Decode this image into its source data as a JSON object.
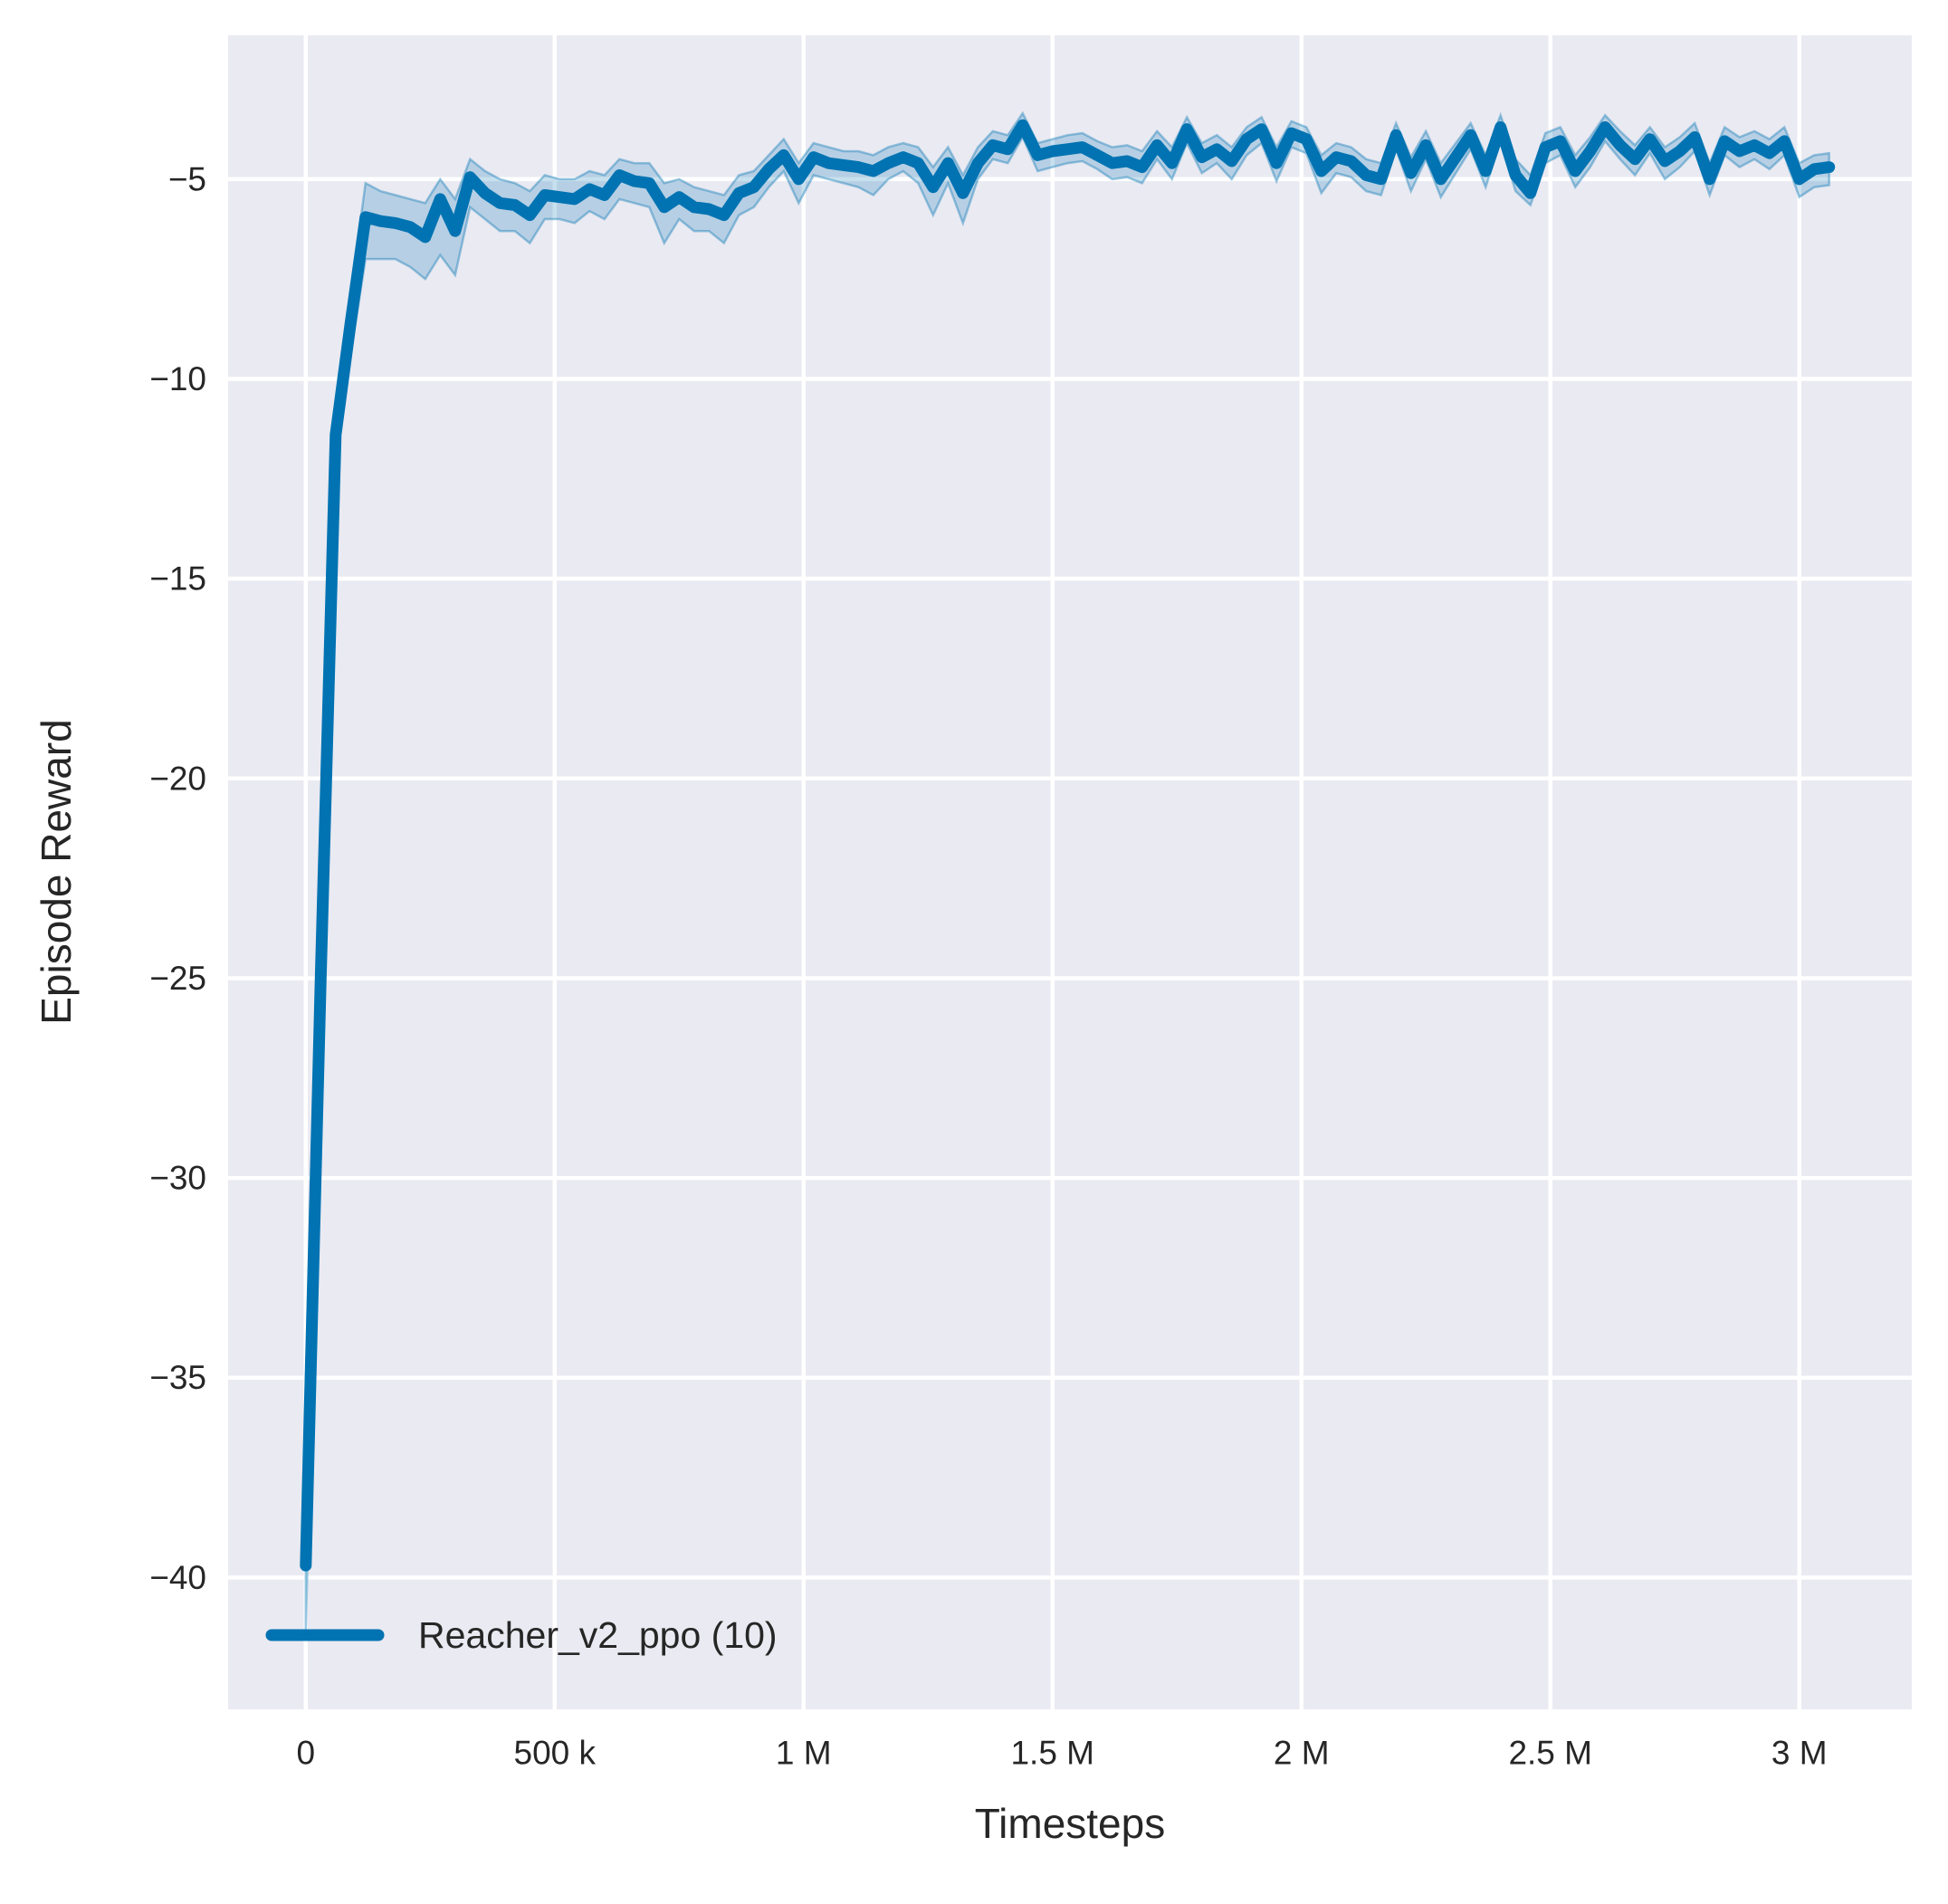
{
  "figure": {
    "background": "#ffffff",
    "panel_background": "#eaeaf2",
    "grid_color": "#ffffff",
    "text_color": "#262626"
  },
  "chart_data": {
    "type": "line",
    "title": "",
    "xlabel": "Timesteps",
    "ylabel": "Episode Reward",
    "grid": true,
    "legend_position": "lower left",
    "xlim": [
      -156000,
      3226000
    ],
    "ylim": [
      -43.3,
      -1.4
    ],
    "x_ticks": [
      {
        "value": 0,
        "label": "0"
      },
      {
        "value": 500000,
        "label": "500 k"
      },
      {
        "value": 1000000,
        "label": "1 M"
      },
      {
        "value": 1500000,
        "label": "1.5 M"
      },
      {
        "value": 2000000,
        "label": "2 M"
      },
      {
        "value": 2500000,
        "label": "2.5 M"
      },
      {
        "value": 3000000,
        "label": "3 M"
      }
    ],
    "y_ticks": [
      {
        "value": -5,
        "label": "−5"
      },
      {
        "value": -10,
        "label": "−10"
      },
      {
        "value": -15,
        "label": "−15"
      },
      {
        "value": -20,
        "label": "−20"
      },
      {
        "value": -25,
        "label": "−25"
      },
      {
        "value": -30,
        "label": "−30"
      },
      {
        "value": -35,
        "label": "−35"
      },
      {
        "value": -40,
        "label": "−40"
      }
    ],
    "series": [
      {
        "name": "Reacher_v2_ppo (10)",
        "color": "#0173b2",
        "band_fill_opacity": 0.22,
        "band_edge_opacity": 0.38,
        "points_format": [
          "timestep",
          "mean_reward",
          "band_low",
          "band_high"
        ],
        "points": [
          [
            0,
            -39.7,
            -41.4,
            -39.3
          ],
          [
            30000,
            -25.0,
            -26.0,
            -24.4
          ],
          [
            60000,
            -11.4,
            -12.1,
            -10.8
          ],
          [
            90000,
            -8.6,
            -9.4,
            -7.9
          ],
          [
            120000,
            -5.95,
            -7.0,
            -5.1
          ],
          [
            150000,
            -6.05,
            -7.0,
            -5.3
          ],
          [
            180000,
            -6.1,
            -7.0,
            -5.4
          ],
          [
            210000,
            -6.2,
            -7.2,
            -5.5
          ],
          [
            240000,
            -6.45,
            -7.5,
            -5.6
          ],
          [
            270000,
            -5.5,
            -6.9,
            -5.0
          ],
          [
            300000,
            -6.3,
            -7.4,
            -5.5
          ],
          [
            330000,
            -4.95,
            -5.7,
            -4.5
          ],
          [
            360000,
            -5.35,
            -6.0,
            -4.8
          ],
          [
            390000,
            -5.6,
            -6.3,
            -5.0
          ],
          [
            420000,
            -5.65,
            -6.3,
            -5.1
          ],
          [
            450000,
            -5.9,
            -6.6,
            -5.3
          ],
          [
            480000,
            -5.4,
            -6.0,
            -4.9
          ],
          [
            510000,
            -5.45,
            -6.0,
            -5.0
          ],
          [
            540000,
            -5.5,
            -6.1,
            -5.0
          ],
          [
            570000,
            -5.25,
            -5.8,
            -4.8
          ],
          [
            600000,
            -5.4,
            -6.0,
            -4.9
          ],
          [
            630000,
            -4.9,
            -5.5,
            -4.5
          ],
          [
            660000,
            -5.05,
            -5.6,
            -4.6
          ],
          [
            690000,
            -5.1,
            -5.7,
            -4.6
          ],
          [
            720000,
            -5.7,
            -6.6,
            -5.1
          ],
          [
            750000,
            -5.45,
            -6.0,
            -5.0
          ],
          [
            780000,
            -5.7,
            -6.3,
            -5.2
          ],
          [
            810000,
            -5.75,
            -6.3,
            -5.3
          ],
          [
            840000,
            -5.9,
            -6.6,
            -5.4
          ],
          [
            870000,
            -5.35,
            -5.9,
            -4.9
          ],
          [
            900000,
            -5.2,
            -5.7,
            -4.8
          ],
          [
            930000,
            -4.75,
            -5.2,
            -4.4
          ],
          [
            960000,
            -4.4,
            -4.8,
            -4.0
          ],
          [
            990000,
            -5.0,
            -5.6,
            -4.6
          ],
          [
            1020000,
            -4.45,
            -4.9,
            -4.1
          ],
          [
            1050000,
            -4.6,
            -5.0,
            -4.2
          ],
          [
            1080000,
            -4.65,
            -5.1,
            -4.3
          ],
          [
            1110000,
            -4.7,
            -5.2,
            -4.3
          ],
          [
            1140000,
            -4.8,
            -5.4,
            -4.4
          ],
          [
            1170000,
            -4.6,
            -5.0,
            -4.2
          ],
          [
            1200000,
            -4.45,
            -4.8,
            -4.1
          ],
          [
            1230000,
            -4.6,
            -5.1,
            -4.2
          ],
          [
            1260000,
            -5.2,
            -5.9,
            -4.7
          ],
          [
            1290000,
            -4.6,
            -5.1,
            -4.2
          ],
          [
            1320000,
            -5.35,
            -6.1,
            -4.9
          ],
          [
            1350000,
            -4.6,
            -5.0,
            -4.2
          ],
          [
            1380000,
            -4.15,
            -4.5,
            -3.8
          ],
          [
            1410000,
            -4.25,
            -4.6,
            -3.9
          ],
          [
            1440000,
            -3.65,
            -3.95,
            -3.35
          ],
          [
            1470000,
            -4.4,
            -4.8,
            -4.1
          ],
          [
            1500000,
            -4.3,
            -4.7,
            -4.0
          ],
          [
            1530000,
            -4.25,
            -4.6,
            -3.9
          ],
          [
            1560000,
            -4.2,
            -4.55,
            -3.85
          ],
          [
            1590000,
            -4.4,
            -4.75,
            -4.05
          ],
          [
            1620000,
            -4.6,
            -5.0,
            -4.2
          ],
          [
            1650000,
            -4.55,
            -4.95,
            -4.15
          ],
          [
            1680000,
            -4.7,
            -5.1,
            -4.3
          ],
          [
            1710000,
            -4.15,
            -4.5,
            -3.8
          ],
          [
            1740000,
            -4.6,
            -5.0,
            -4.2
          ],
          [
            1770000,
            -3.75,
            -4.1,
            -3.45
          ],
          [
            1800000,
            -4.45,
            -4.85,
            -4.1
          ],
          [
            1830000,
            -4.25,
            -4.6,
            -3.9
          ],
          [
            1860000,
            -4.55,
            -5.0,
            -4.2
          ],
          [
            1890000,
            -4.0,
            -4.4,
            -3.7
          ],
          [
            1920000,
            -3.75,
            -4.1,
            -3.45
          ],
          [
            1950000,
            -4.6,
            -5.05,
            -4.2
          ],
          [
            1980000,
            -3.85,
            -4.2,
            -3.55
          ],
          [
            2010000,
            -4.0,
            -4.35,
            -3.7
          ],
          [
            2040000,
            -4.8,
            -5.35,
            -4.4
          ],
          [
            2070000,
            -4.45,
            -4.85,
            -4.1
          ],
          [
            2100000,
            -4.55,
            -4.95,
            -4.2
          ],
          [
            2130000,
            -4.9,
            -5.3,
            -4.5
          ],
          [
            2160000,
            -5.0,
            -5.4,
            -4.6
          ],
          [
            2190000,
            -3.9,
            -4.25,
            -3.6
          ],
          [
            2220000,
            -4.85,
            -5.3,
            -4.45
          ],
          [
            2250000,
            -4.15,
            -4.5,
            -3.8
          ],
          [
            2280000,
            -5.0,
            -5.45,
            -4.6
          ],
          [
            2310000,
            -4.45,
            -4.85,
            -4.1
          ],
          [
            2340000,
            -3.9,
            -4.25,
            -3.6
          ],
          [
            2370000,
            -4.8,
            -5.2,
            -4.4
          ],
          [
            2400000,
            -3.7,
            -4.05,
            -3.4
          ],
          [
            2430000,
            -4.9,
            -5.3,
            -4.5
          ],
          [
            2460000,
            -5.35,
            -5.65,
            -4.9
          ],
          [
            2490000,
            -4.2,
            -4.6,
            -3.85
          ],
          [
            2520000,
            -4.05,
            -4.4,
            -3.7
          ],
          [
            2550000,
            -4.8,
            -5.2,
            -4.4
          ],
          [
            2580000,
            -4.3,
            -4.7,
            -3.95
          ],
          [
            2610000,
            -3.7,
            -4.05,
            -3.4
          ],
          [
            2640000,
            -4.15,
            -4.5,
            -3.8
          ],
          [
            2670000,
            -4.5,
            -4.9,
            -4.15
          ],
          [
            2700000,
            -4.0,
            -4.35,
            -3.7
          ],
          [
            2730000,
            -4.55,
            -5.0,
            -4.2
          ],
          [
            2760000,
            -4.3,
            -4.7,
            -3.95
          ],
          [
            2790000,
            -3.95,
            -4.3,
            -3.6
          ],
          [
            2820000,
            -5.0,
            -5.4,
            -4.6
          ],
          [
            2850000,
            -4.05,
            -4.4,
            -3.7
          ],
          [
            2880000,
            -4.3,
            -4.7,
            -3.95
          ],
          [
            2910000,
            -4.15,
            -4.5,
            -3.8
          ],
          [
            2940000,
            -4.35,
            -4.75,
            -4.0
          ],
          [
            2970000,
            -4.05,
            -4.4,
            -3.7
          ],
          [
            3000000,
            -5.0,
            -5.45,
            -4.6
          ],
          [
            3030000,
            -4.75,
            -5.2,
            -4.4
          ],
          [
            3060000,
            -4.7,
            -5.15,
            -4.35
          ]
        ]
      }
    ],
    "legend": {
      "entries": [
        {
          "label": "Reacher_v2_ppo (10)",
          "color": "#0173b2"
        }
      ]
    }
  }
}
